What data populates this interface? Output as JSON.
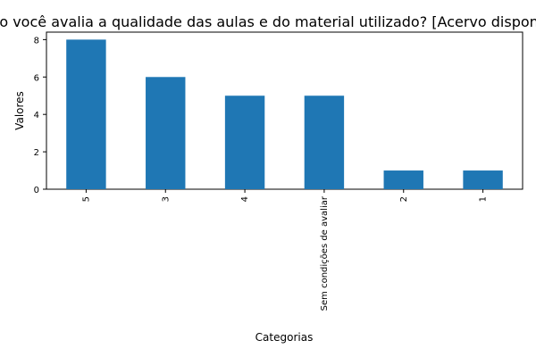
{
  "chart_data": {
    "type": "bar",
    "title": "Como você avalia a qualidade das aulas e do material utilizado?  [Acervo disponível]",
    "xlabel": "Categorias",
    "ylabel": "Valores",
    "categories": [
      "5",
      "3",
      "4",
      "Sem condições de avaliar",
      "2",
      "1"
    ],
    "values": [
      8,
      6,
      5,
      5,
      1,
      1
    ],
    "ylim": [
      0,
      8.4
    ],
    "yticks": [
      0,
      2,
      4,
      6,
      8
    ],
    "bar_color": "#1f77b4",
    "grid": false,
    "legend": "none"
  }
}
